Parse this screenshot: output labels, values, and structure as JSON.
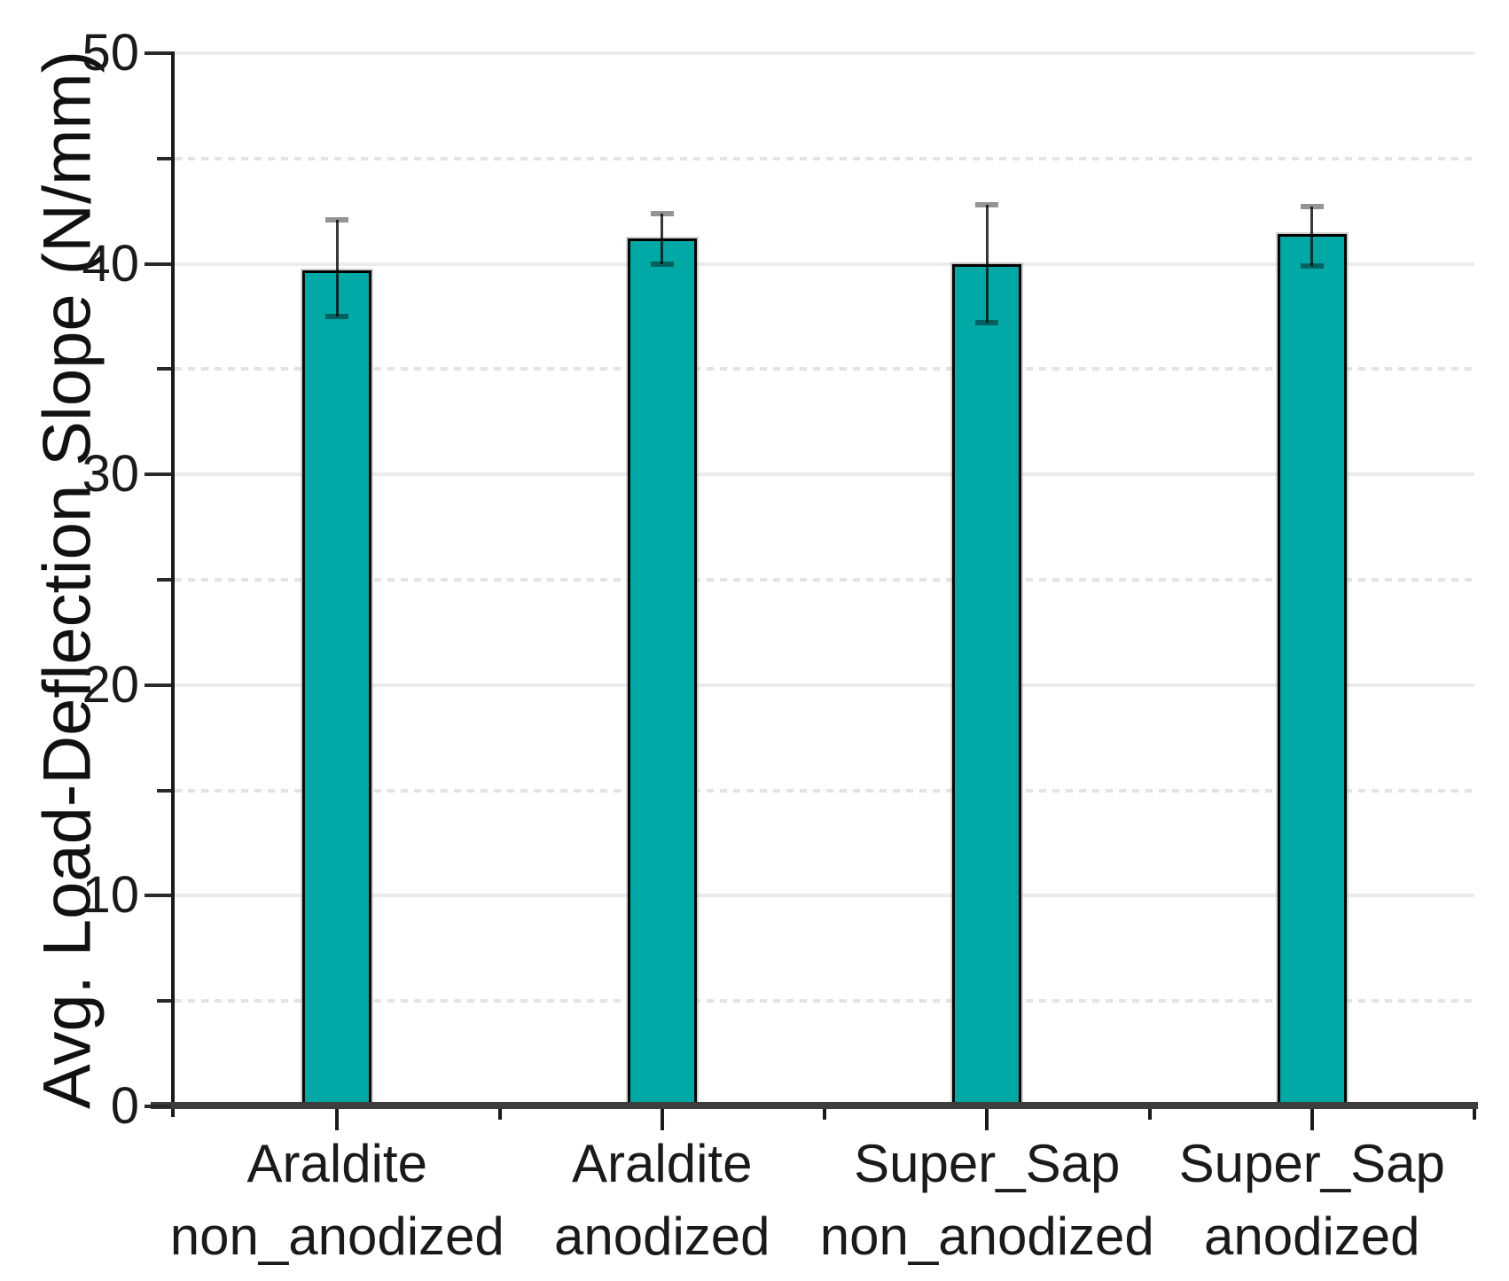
{
  "chart_data": {
    "type": "bar",
    "title": "",
    "xlabel": "",
    "ylabel": "Avg. Load-Deflection Slope (N/mm)",
    "ylim": [
      0,
      50
    ],
    "yticks_major": [
      0,
      10,
      20,
      30,
      40,
      50
    ],
    "yticks_minor": [
      5,
      15,
      25,
      35,
      45
    ],
    "grid": "horizontal; solid lines at major ticks, dotted lines at minor ticks",
    "legend": "none",
    "categories": [
      {
        "line1": "Araldite",
        "line2": "non_anodized"
      },
      {
        "line1": "Araldite",
        "line2": "anodized"
      },
      {
        "line1": "Super_Sap",
        "line2": "non_anodized"
      },
      {
        "line1": "Super_Sap",
        "line2": "anodized"
      }
    ],
    "series": [
      {
        "name": "Avg. Load-Deflection Slope (N/mm)",
        "values": [
          39.7,
          41.2,
          40.0,
          41.4
        ],
        "error_high": [
          42.1,
          42.4,
          42.8,
          42.7
        ],
        "error_low": [
          37.5,
          40.0,
          37.2,
          39.9
        ]
      }
    ],
    "colors": {
      "bar_fill": "#00a9a5",
      "bar_border": "#000000",
      "error_bar": "#3d3d3d",
      "grid_major": "#ebebeb",
      "grid_minor": "#e3e3e3",
      "axis": "#1a1a1a",
      "text": "#1a1a1a"
    }
  }
}
